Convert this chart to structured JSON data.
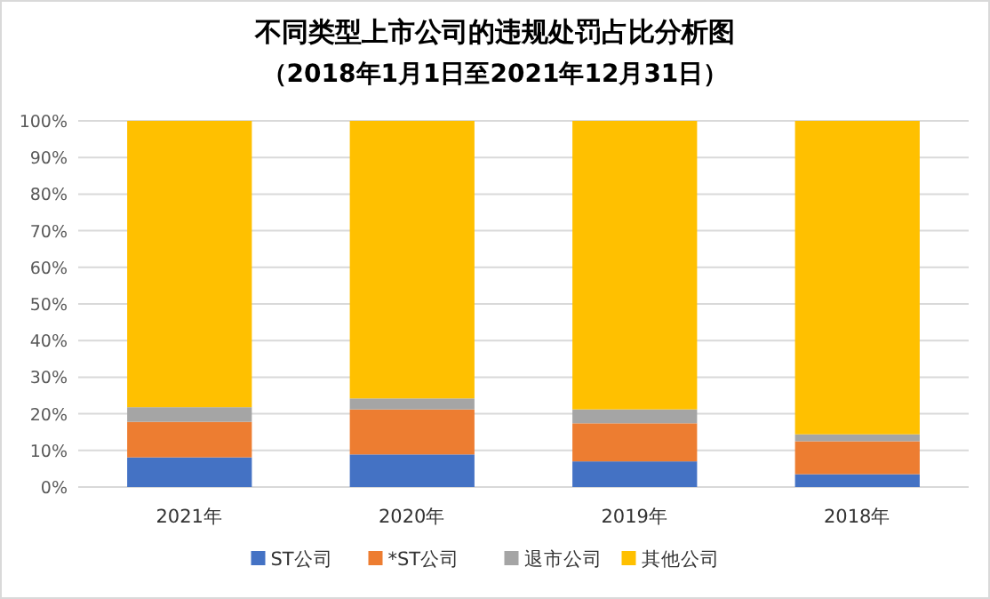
{
  "chart_data": {
    "type": "bar",
    "stacked": true,
    "title": "不同类型上市公司的违规处罚占比分析图",
    "subtitle": "（2018年1月1日至2021年12月31日）",
    "categories": [
      "2021年",
      "2020年",
      "2019年",
      "2018年"
    ],
    "series": [
      {
        "name": "ST公司",
        "color": "#4472c4",
        "values": [
          8.1,
          8.9,
          7.0,
          3.5
        ]
      },
      {
        "name": "*ST公司",
        "color": "#ed7d31",
        "values": [
          9.7,
          12.3,
          10.4,
          9.0
        ]
      },
      {
        "name": "退市公司",
        "color": "#a5a5a5",
        "values": [
          4.0,
          3.0,
          3.8,
          1.9
        ]
      },
      {
        "name": "其他公司",
        "color": "#ffc000",
        "values": [
          78.2,
          75.8,
          78.8,
          85.6
        ]
      }
    ],
    "ylim": [
      0,
      100
    ],
    "yticks": [
      {
        "value": 0,
        "label": "0%"
      },
      {
        "value": 10,
        "label": "10%"
      },
      {
        "value": 20,
        "label": "20%"
      },
      {
        "value": 30,
        "label": "30%"
      },
      {
        "value": 40,
        "label": "40%"
      },
      {
        "value": 50,
        "label": "50%"
      },
      {
        "value": 60,
        "label": "60%"
      },
      {
        "value": 70,
        "label": "70%"
      },
      {
        "value": 80,
        "label": "80%"
      },
      {
        "value": 90,
        "label": "90%"
      },
      {
        "value": 100,
        "label": "100%"
      }
    ],
    "grid": "y",
    "legend": "bottom"
  }
}
